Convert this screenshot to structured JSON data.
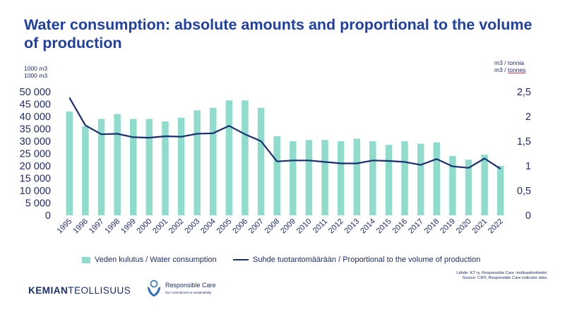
{
  "title": "Water consumption: absolute amounts and proportional to the volume of production",
  "left_unit": [
    "1000 m3",
    "1000 m3"
  ],
  "right_unit": [
    "m3 / tonnia",
    "m3  / ",
    "tonnes"
  ],
  "legend": {
    "bar": "Veden kulutus / Water consumption",
    "line": "Suhde tuotantomäärään / Proportional to the volume of production"
  },
  "source": [
    "Lähde: KT ry, Responsible Care -indikaattoritiedot",
    "Source: CIFF, Responsible Care indicator data"
  ],
  "logo": {
    "kemian_bold": "KEMIAN",
    "kemian_rest": "TEOLLISUUS",
    "rc_name": "Responsible Care",
    "rc_tagline": "Our commitment to sustainability"
  },
  "colors": {
    "bar": "#8fdccc",
    "line": "#1a2f6e",
    "title": "#1f3fa3",
    "text": "#1f2d6b"
  },
  "chart_data": {
    "type": "bar",
    "categories": [
      "1995",
      "1996",
      "1997",
      "1998",
      "1999",
      "2000",
      "2001",
      "2002",
      "2003",
      "2004",
      "2005",
      "2006",
      "2007",
      "2008",
      "2009",
      "2010",
      "2011",
      "2012",
      "2013",
      "2014",
      "2015",
      "2016",
      "2017",
      "2018",
      "2019",
      "2020",
      "2021",
      "2022"
    ],
    "series": [
      {
        "name": "Veden kulutus / Water consumption",
        "type": "bar",
        "axis": "left",
        "values": [
          42000,
          36000,
          39000,
          41000,
          39000,
          39000,
          38000,
          39500,
          42500,
          43500,
          46500,
          46500,
          43500,
          32000,
          30000,
          30500,
          30500,
          30000,
          31000,
          30000,
          28500,
          30000,
          29000,
          29500,
          24000,
          22500,
          24500,
          20000
        ]
      },
      {
        "name": "Suhde tuotantomäärään / Proportional to the volume of production",
        "type": "line",
        "axis": "right",
        "values": [
          2.38,
          1.82,
          1.64,
          1.65,
          1.58,
          1.57,
          1.6,
          1.59,
          1.65,
          1.66,
          1.81,
          1.64,
          1.5,
          1.09,
          1.11,
          1.11,
          1.08,
          1.05,
          1.05,
          1.11,
          1.1,
          1.08,
          1.02,
          1.14,
          0.99,
          0.96,
          1.15,
          0.94
        ]
      }
    ],
    "left_axis": {
      "min": 0,
      "max": 50000,
      "ticks": [
        "0",
        "5 000",
        "10 000",
        "15 000",
        "20 000",
        "25 000",
        "30 000",
        "35 000",
        "40 000",
        "45 000",
        "50 000"
      ]
    },
    "right_axis": {
      "min": 0,
      "max": 2.5,
      "ticks": [
        "0",
        "0,5",
        "1",
        "1,5",
        "2",
        "2,5"
      ]
    },
    "grid": false,
    "legend_position": "bottom"
  }
}
